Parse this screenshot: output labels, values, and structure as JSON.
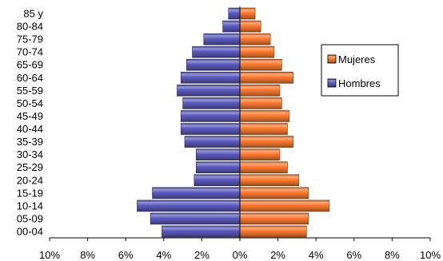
{
  "chart_data": {
    "type": "bar",
    "orientation": "horizontal",
    "layout": "population-pyramid",
    "categories": [
      "00-04",
      "05-09",
      "10-14",
      "15-19",
      "20-24",
      "25-29",
      "30-34",
      "35-39",
      "40-44",
      "45-49",
      "50-54",
      "55-59",
      "60-64",
      "65-69",
      "70-74",
      "75-79",
      "80-84",
      "85 y"
    ],
    "series": [
      {
        "name": "Mujeres",
        "side": "right",
        "color": "#FF7A2E",
        "values": [
          3.5,
          3.6,
          4.7,
          3.6,
          3.1,
          2.5,
          2.1,
          2.8,
          2.5,
          2.6,
          2.2,
          2.1,
          2.8,
          2.2,
          1.8,
          1.6,
          1.1,
          0.8
        ]
      },
      {
        "name": "Hombres",
        "side": "left",
        "color": "#5B5BC0",
        "values": [
          4.1,
          4.7,
          5.4,
          4.6,
          2.4,
          2.3,
          2.3,
          2.9,
          3.1,
          3.1,
          3.0,
          3.3,
          3.1,
          2.8,
          2.5,
          1.9,
          0.9,
          0.6
        ]
      }
    ],
    "x_tick_labels": [
      "10%",
      "8%",
      "6%",
      "4%",
      "2%",
      "0%",
      "2%",
      "4%",
      "6%",
      "8%",
      "10%"
    ],
    "xlim": [
      -10,
      10
    ],
    "grid": false,
    "legend": {
      "placement": "right",
      "entries": [
        "Mujeres",
        "Hombres"
      ]
    }
  }
}
